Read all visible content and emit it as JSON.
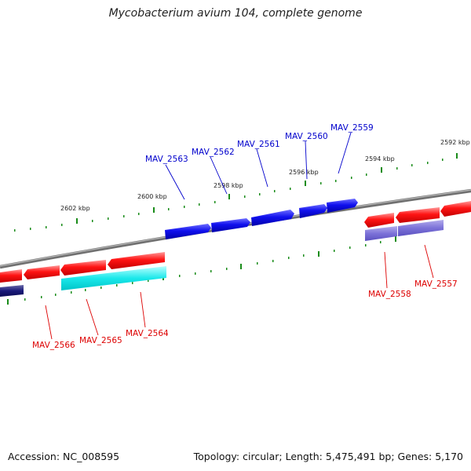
{
  "title": "Mycobacterium avium 104, complete genome",
  "footer": {
    "accession": "Accession: NC_008595",
    "stats": "Topology: circular; Length: 5,475,491 bp; Genes: 5,170"
  },
  "colors": {
    "forward_gene_label": "#0000cc",
    "reverse_gene_label": "#dd0000",
    "backbone": "#808080",
    "ticks": "#1a8c1a"
  },
  "kbp_markers": [
    "2602 kbp",
    "2600 kbp",
    "2598 kbp",
    "2596 kbp",
    "2594 kbp",
    "2592 kbp"
  ],
  "genes_forward": [
    {
      "locus": "MAV_2563"
    },
    {
      "locus": "MAV_2562"
    },
    {
      "locus": "MAV_2561"
    },
    {
      "locus": "MAV_2560"
    },
    {
      "locus": "MAV_2559"
    }
  ],
  "genes_reverse": [
    {
      "locus": "MAV_2566"
    },
    {
      "locus": "MAV_2565"
    },
    {
      "locus": "MAV_2564"
    },
    {
      "locus": "MAV_2558"
    },
    {
      "locus": "MAV_2557"
    }
  ]
}
